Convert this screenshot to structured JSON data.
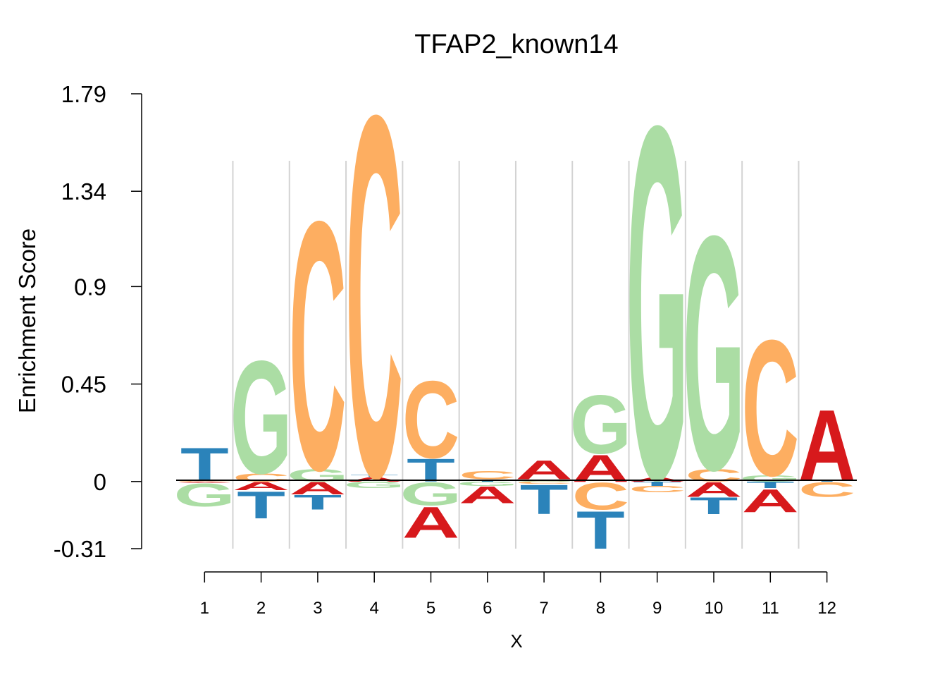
{
  "chart_data": {
    "type": "sequence-logo",
    "title": "TFAP2_known14",
    "xlabel": "X",
    "ylabel": "Enrichment Score",
    "y_ticks": [
      "1.79",
      "1.34",
      "0.9",
      "0.45",
      "0",
      "-0.31"
    ],
    "ylim": [
      -0.31,
      1.79
    ],
    "x_ticks": [
      "1",
      "2",
      "3",
      "4",
      "5",
      "6",
      "7",
      "8",
      "9",
      "10",
      "11",
      "12"
    ],
    "colors": {
      "A": "#d7191c",
      "C": "#fdae61",
      "G": "#abdda4",
      "T": "#2b83ba"
    },
    "positions": [
      {
        "pos": 1,
        "above": [
          [
            "C",
            0.003
          ],
          [
            "T",
            0.16
          ]
        ],
        "below": [
          [
            "A",
            0.005
          ],
          [
            "G",
            0.11
          ]
        ]
      },
      {
        "pos": 2,
        "above": [
          [
            "C",
            0.04
          ],
          [
            "G",
            0.54
          ]
        ],
        "below": [
          [
            "A",
            0.04
          ],
          [
            "T",
            0.13
          ]
        ]
      },
      {
        "pos": 3,
        "above": [
          [
            "G",
            0.06
          ],
          [
            "C",
            1.19
          ]
        ],
        "below": [
          [
            "A",
            0.06
          ],
          [
            "T",
            0.07
          ]
        ]
      },
      {
        "pos": 4,
        "above": [
          [
            "A",
            0.02
          ],
          [
            "T",
            0.01
          ],
          [
            "C",
            1.73
          ]
        ],
        "below": [
          [
            "G",
            0.03
          ]
        ]
      },
      {
        "pos": 5,
        "above": [
          [
            "T",
            0.11
          ],
          [
            "C",
            0.37
          ]
        ],
        "below": [
          [
            "G",
            0.11
          ],
          [
            "A",
            0.15
          ]
        ]
      },
      {
        "pos": 6,
        "above": [
          [
            "T",
            0.01
          ],
          [
            "C",
            0.04
          ]
        ],
        "below": [
          [
            "G",
            0.02
          ],
          [
            "A",
            0.08
          ]
        ]
      },
      {
        "pos": 7,
        "above": [
          [
            "G",
            0.01
          ],
          [
            "A",
            0.09
          ]
        ],
        "below": [
          [
            "C",
            0.01
          ],
          [
            "T",
            0.14
          ]
        ]
      },
      {
        "pos": 8,
        "above": [
          [
            "A",
            0.13
          ],
          [
            "G",
            0.28
          ]
        ],
        "below": [
          [
            "C",
            0.13
          ],
          [
            "T",
            0.18
          ]
        ]
      },
      {
        "pos": 9,
        "above": [
          [
            "A",
            0.02
          ],
          [
            "G",
            1.69
          ]
        ],
        "below": [
          [
            "T",
            0.02
          ],
          [
            "C",
            0.03
          ]
        ]
      },
      {
        "pos": 10,
        "above": [
          [
            "C",
            0.06
          ],
          [
            "G",
            1.12
          ]
        ],
        "below": [
          [
            "A",
            0.07
          ],
          [
            "T",
            0.08
          ]
        ]
      },
      {
        "pos": 11,
        "above": [
          [
            "G",
            0.03
          ],
          [
            "C",
            0.65
          ]
        ],
        "below": [
          [
            "T",
            0.03
          ],
          [
            "A",
            0.11
          ]
        ]
      },
      {
        "pos": 12,
        "above": [
          [
            "T",
            0.005
          ],
          [
            "A",
            0.34
          ]
        ],
        "below": [
          [
            "C",
            0.07
          ]
        ]
      }
    ]
  }
}
